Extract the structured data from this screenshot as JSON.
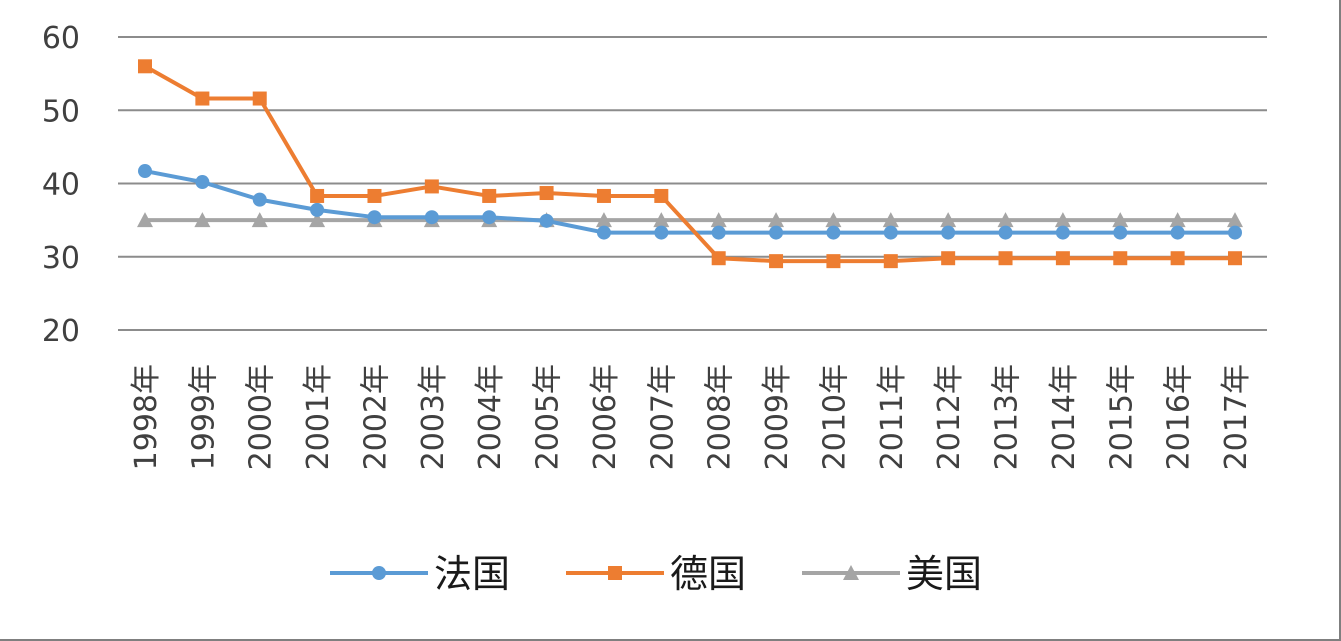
{
  "chart_data": {
    "type": "line",
    "title": "",
    "xlabel": "",
    "ylabel": "",
    "categories": [
      "1998年",
      "1999年",
      "2000年",
      "2001年",
      "2002年",
      "2003年",
      "2004年",
      "2005年",
      "2006年",
      "2007年",
      "2008年",
      "2009年",
      "2010年",
      "2011年",
      "2012年",
      "2013年",
      "2014年",
      "2015年",
      "2016年",
      "2017年"
    ],
    "yticks": [
      "20",
      "30",
      "40",
      "50",
      "60"
    ],
    "ylim": [
      20,
      60
    ],
    "grid": true,
    "legend_position": "bottom",
    "series": [
      {
        "name": "法国",
        "color": "#5b9bd5",
        "marker": "circle",
        "values": [
          41.7,
          40.2,
          37.8,
          36.4,
          35.4,
          35.4,
          35.4,
          34.9,
          33.3,
          33.3,
          33.3,
          33.3,
          33.3,
          33.3,
          33.3,
          33.3,
          33.3,
          33.3,
          33.3,
          33.3
        ]
      },
      {
        "name": "德国",
        "color": "#ed7d31",
        "marker": "square",
        "values": [
          56.0,
          51.6,
          51.6,
          38.3,
          38.3,
          39.6,
          38.3,
          38.7,
          38.3,
          38.3,
          29.8,
          29.4,
          29.4,
          29.4,
          29.8,
          29.8,
          29.8,
          29.8,
          29.8,
          29.8
        ]
      },
      {
        "name": "美国",
        "color": "#a5a5a5",
        "marker": "triangle",
        "values": [
          35,
          35,
          35,
          35,
          35,
          35,
          35,
          35,
          35,
          35,
          35,
          35,
          35,
          35,
          35,
          35,
          35,
          35,
          35,
          35
        ]
      }
    ]
  }
}
